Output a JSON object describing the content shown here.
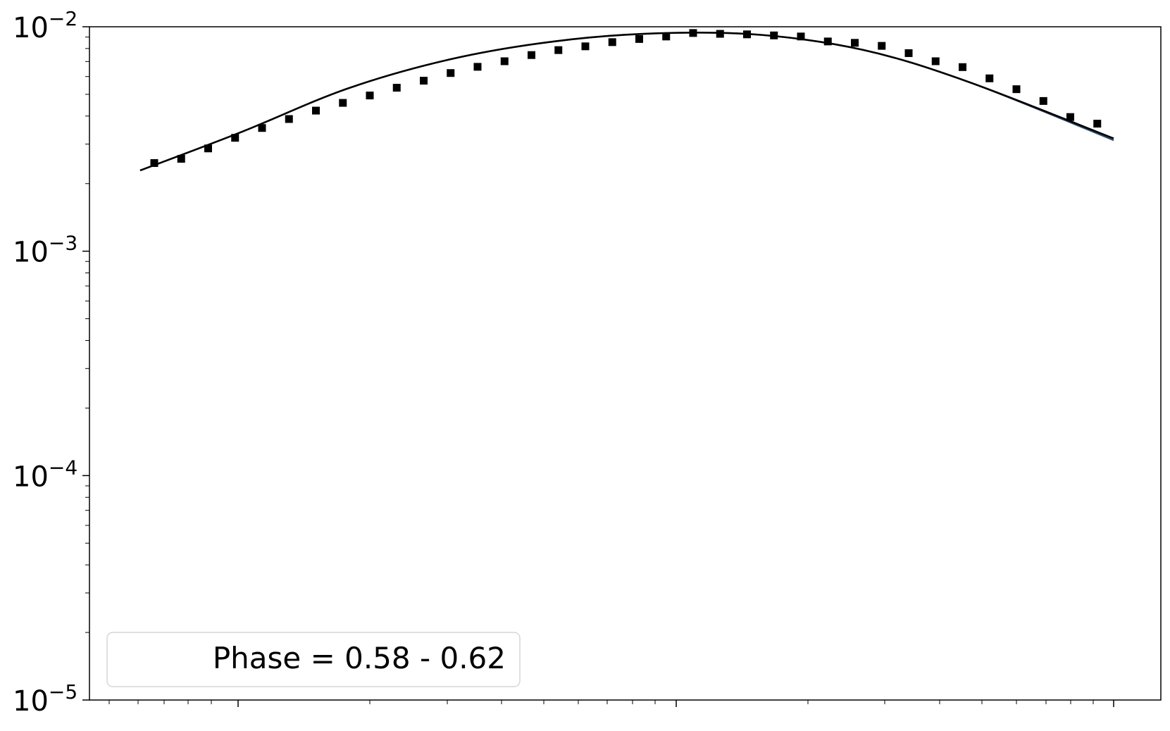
{
  "chart_data": {
    "type": "scatter",
    "title": "",
    "xlabel": "",
    "ylabel": "",
    "x_scale": "log",
    "x_tick_labels_shown": false,
    "y_scale": "log",
    "ylim": [
      1e-05,
      0.01
    ],
    "y_ticks": [
      {
        "value": 1e-05,
        "base": "10",
        "exp": "−5"
      },
      {
        "value": 0.0001,
        "base": "10",
        "exp": "−4"
      },
      {
        "value": 0.001,
        "base": "10",
        "exp": "−3"
      },
      {
        "value": 0.01,
        "base": "10",
        "exp": "−2"
      }
    ],
    "grid": false,
    "legend": {
      "placement": "lower-left",
      "entries": [
        "Phase = 0.58 - 0.62"
      ]
    },
    "series": [
      {
        "kind": "markers",
        "marker": "square",
        "color": "#000000",
        "values": [
          0.00247,
          0.00258,
          0.00287,
          0.0032,
          0.00354,
          0.00388,
          0.00423,
          0.00458,
          0.00494,
          0.00535,
          0.00575,
          0.00622,
          0.00663,
          0.00702,
          0.00748,
          0.00787,
          0.00818,
          0.00854,
          0.00882,
          0.00905,
          0.00938,
          0.0093,
          0.00925,
          0.00915,
          0.00905,
          0.0086,
          0.00848,
          0.00822,
          0.00763,
          0.00702,
          0.00661,
          0.00589,
          0.00527,
          0.00467,
          0.00396,
          0.0037
        ]
      },
      {
        "kind": "line",
        "color": "#000000",
        "values": [
          0.00229,
          0.00341,
          0.0053,
          0.00717,
          0.0086,
          0.00935,
          0.0092,
          0.00788,
          0.00571,
          0.00318
        ]
      },
      {
        "kind": "line",
        "color": "#2c4a6e",
        "values": [
          0.00229,
          0.00341,
          0.0053,
          0.00717,
          0.0086,
          0.00935,
          0.0092,
          0.00788,
          0.00571,
          0.00312
        ]
      }
    ]
  }
}
